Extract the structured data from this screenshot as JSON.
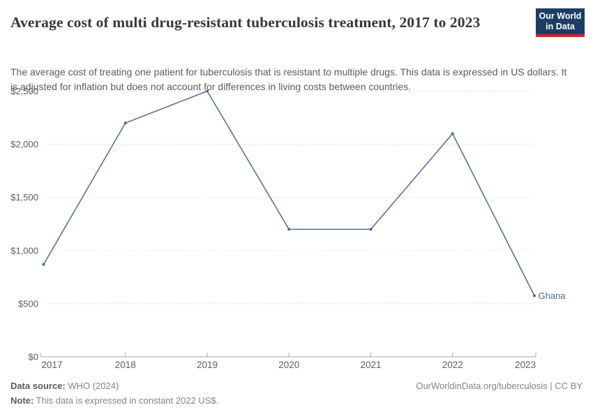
{
  "header": {
    "title": "Average cost of multi drug-resistant tuberculosis treatment, 2017 to 2023",
    "subtitle": "The average cost of treating one patient for tuberculosis that is resistant to multiple drugs. This data is expressed in US dollars. It is adjusted for inflation but does not account for differences in living costs between countries.",
    "logo": {
      "line1": "Our World",
      "line2": "in Data",
      "bg_color": "#1d3d63",
      "accent_color": "#c5292e"
    }
  },
  "chart_data": {
    "type": "line",
    "title": "Average cost of multi drug-resistant tuberculosis treatment",
    "x": [
      2017,
      2018,
      2019,
      2020,
      2021,
      2022,
      2023
    ],
    "series": [
      {
        "name": "Ghana",
        "values": [
          870,
          2200,
          2500,
          1200,
          1200,
          2100,
          575
        ],
        "color": "#4c6a9c"
      }
    ],
    "xlabel": "",
    "ylabel": "",
    "ylim": [
      0,
      2500
    ],
    "y_ticks": [
      0,
      500,
      1000,
      1500,
      2000,
      2500
    ],
    "y_tick_prefix": "$",
    "grid": "horizontal-dashed",
    "legend_position": "end-of-line-label",
    "colors": {
      "grid": "#e3e3e3",
      "axis": "#a8a8a8",
      "tick_label": "#5e5e5e"
    }
  },
  "footer": {
    "source_label": "Data source:",
    "source_value": " WHO (2024)",
    "note_label": "Note:",
    "note_value": " This data is expressed in constant 2022 US$.",
    "link": "OurWorldinData.org/tuberculosis | CC BY"
  }
}
